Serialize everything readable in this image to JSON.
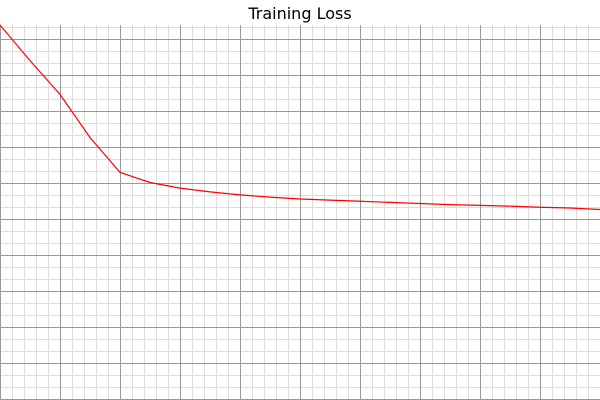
{
  "chart_data": {
    "type": "line",
    "title": "Training Loss",
    "xlabel": "",
    "ylabel": "",
    "grid": true,
    "minor_grid": true,
    "grid_major_color": "#999999",
    "grid_minor_color": "#dddddd",
    "series": [
      {
        "color": "#ff0000",
        "x": [
          0,
          5,
          10,
          15,
          20,
          25,
          30,
          35,
          40,
          45,
          50,
          55,
          60,
          65,
          70,
          75,
          80,
          85,
          90,
          95,
          100
        ],
        "y": [
          1.0,
          0.905,
          0.815,
          0.7,
          0.607,
          0.58,
          0.565,
          0.555,
          0.547,
          0.541,
          0.536,
          0.533,
          0.53,
          0.527,
          0.524,
          0.521,
          0.519,
          0.517,
          0.514,
          0.512,
          0.508
        ]
      }
    ],
    "xlim": [
      0,
      100
    ],
    "ylim": [
      0.0,
      1.0
    ]
  }
}
